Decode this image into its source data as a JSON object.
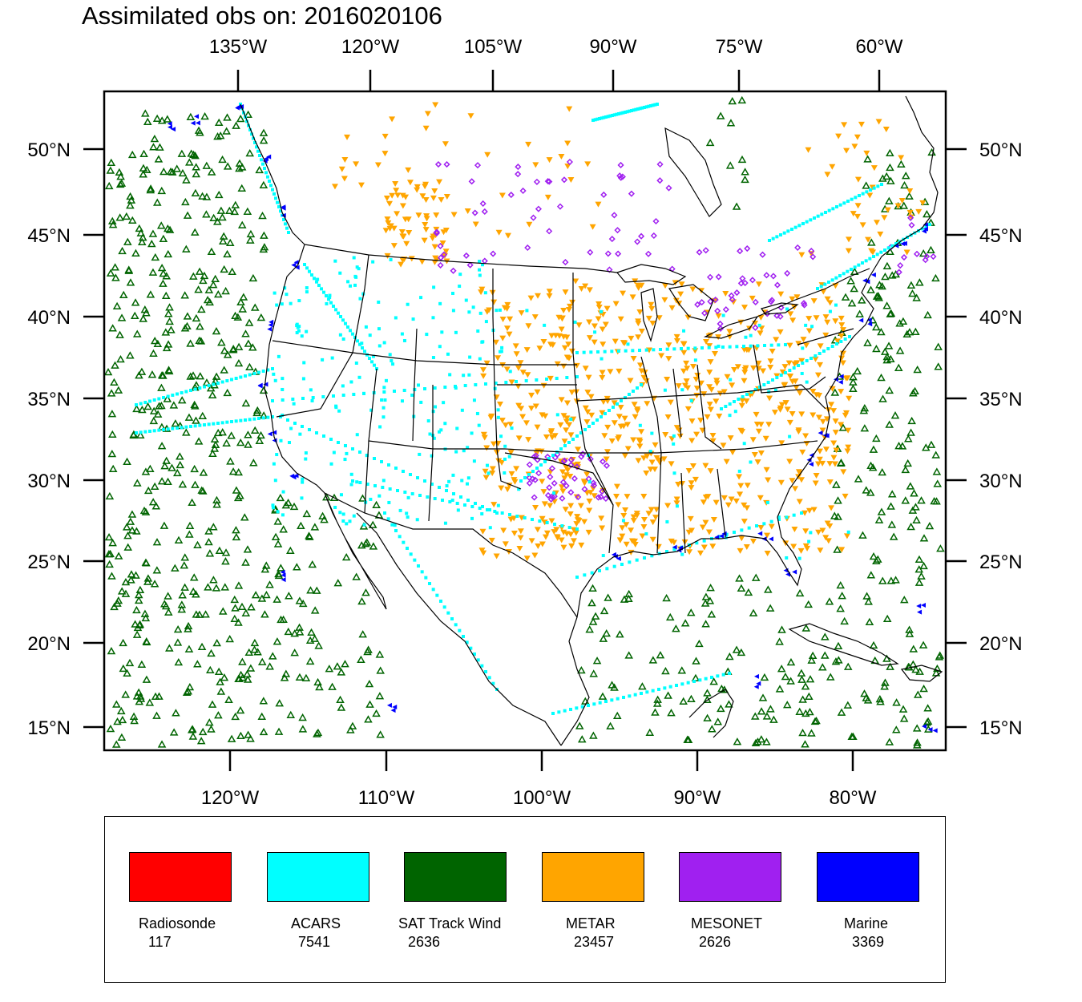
{
  "title": "Assimilated obs on: 2016020106",
  "axes": {
    "top_lon": [
      "135°W",
      "120°W",
      "105°W",
      "90°W",
      "75°W",
      "60°W"
    ],
    "bottom_lon": [
      "120°W",
      "110°W",
      "100°W",
      "90°W",
      "80°W"
    ],
    "lat": [
      "50°N",
      "45°N",
      "40°N",
      "35°N",
      "30°N",
      "25°N",
      "20°N",
      "15°N"
    ]
  },
  "legend": [
    {
      "name": "Radiosonde",
      "count": "117",
      "color": "#ff0000",
      "symbol": "circle"
    },
    {
      "name": "ACARS",
      "count": "7541",
      "color": "#00ffff",
      "symbol": "square"
    },
    {
      "name": "SAT Track Wind",
      "count": "2636",
      "color": "#006400",
      "symbol": "triangle-up"
    },
    {
      "name": "METAR",
      "count": "23457",
      "color": "#ffa500",
      "symbol": "triangle-down"
    },
    {
      "name": "MESONET",
      "count": "2626",
      "color": "#a020f0",
      "symbol": "diamond"
    },
    {
      "name": "Marine",
      "count": "3369",
      "color": "#0000ff",
      "symbol": "triangle-left"
    }
  ]
}
